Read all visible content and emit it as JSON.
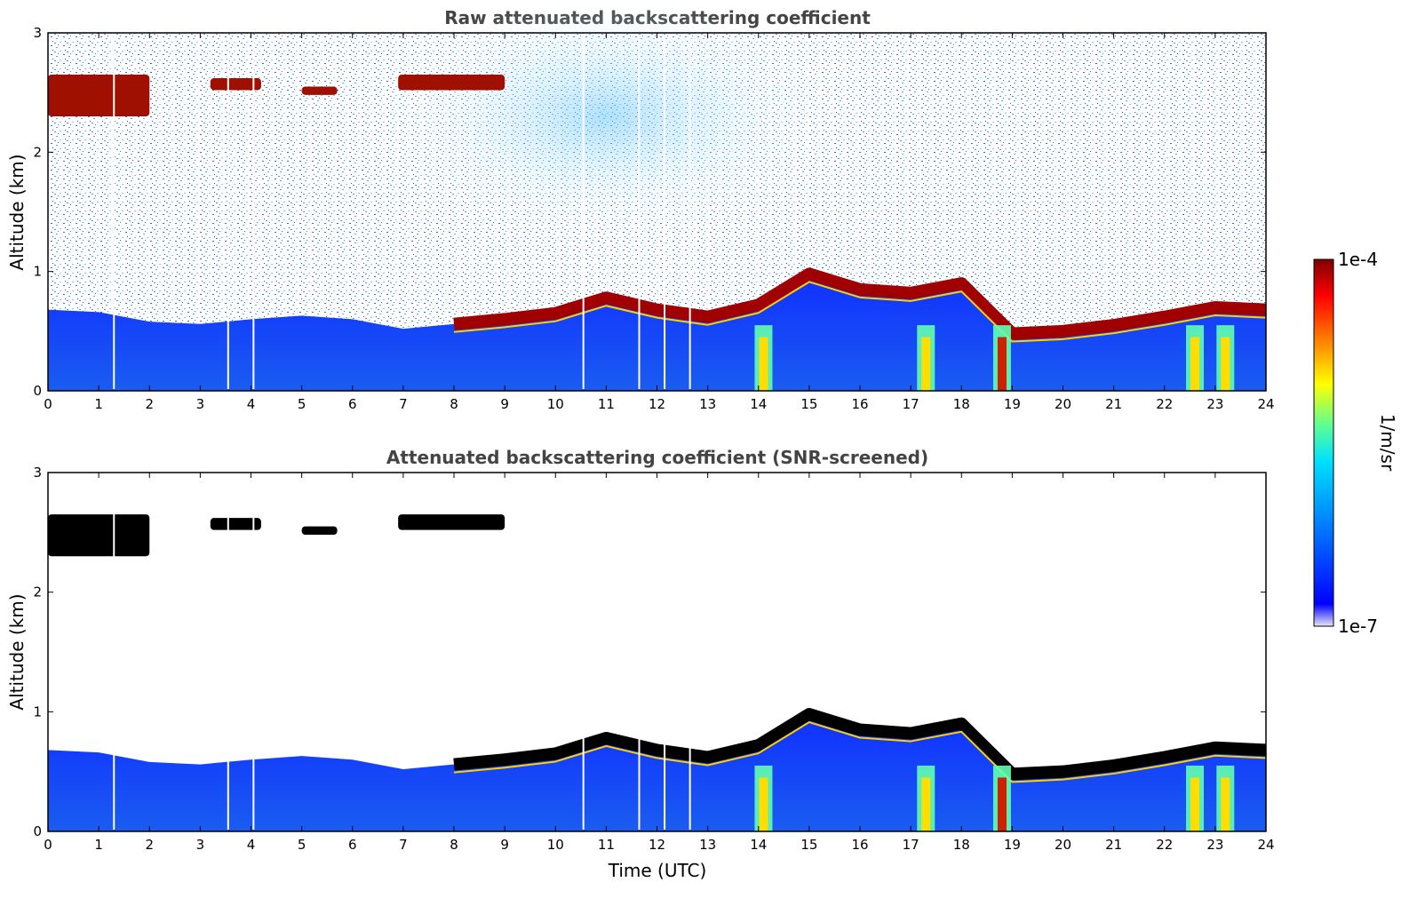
{
  "chart_data": [
    {
      "type": "heatmap",
      "title": "Raw attenuated backscattering coefficient",
      "xlabel": "",
      "ylabel": "Altitude (km)",
      "xlim": [
        0,
        24
      ],
      "ylim": [
        0,
        3
      ],
      "xticks": [
        "0",
        "1",
        "2",
        "3",
        "4",
        "5",
        "6",
        "7",
        "8",
        "9",
        "10",
        "11",
        "12",
        "13",
        "14",
        "15",
        "16",
        "17",
        "18",
        "19",
        "20",
        "21",
        "22",
        "23",
        "24"
      ],
      "yticks": [
        "0",
        "1",
        "2",
        "3"
      ],
      "boundary_layer_top_km": [
        [
          0,
          0.68
        ],
        [
          1,
          0.66
        ],
        [
          2,
          0.58
        ],
        [
          3,
          0.56
        ],
        [
          4,
          0.6
        ],
        [
          5,
          0.63
        ],
        [
          6,
          0.6
        ],
        [
          7,
          0.52
        ],
        [
          8,
          0.56
        ],
        [
          9,
          0.6
        ],
        [
          10,
          0.65
        ],
        [
          11,
          0.78
        ],
        [
          12,
          0.68
        ],
        [
          13,
          0.62
        ],
        [
          14,
          0.72
        ],
        [
          15,
          0.98
        ],
        [
          16,
          0.85
        ],
        [
          17,
          0.82
        ],
        [
          18,
          0.9
        ],
        [
          19,
          0.48
        ],
        [
          20,
          0.5
        ],
        [
          21,
          0.55
        ],
        [
          22,
          0.62
        ],
        [
          23,
          0.7
        ],
        [
          24,
          0.68
        ]
      ],
      "cloud_layers": [
        {
          "start": 0,
          "end": 2.0,
          "base_km": 2.3,
          "top_km": 2.65
        },
        {
          "start": 3.2,
          "end": 4.2,
          "base_km": 2.52,
          "top_km": 2.62
        },
        {
          "start": 5.0,
          "end": 5.7,
          "base_km": 2.48,
          "top_km": 2.55
        },
        {
          "start": 6.9,
          "end": 9.0,
          "base_km": 2.52,
          "top_km": 2.65
        }
      ]
    },
    {
      "type": "heatmap",
      "title": "Attenuated backscattering coefficient (SNR-screened)",
      "xlabel": "Time (UTC)",
      "ylabel": "Altitude (km)",
      "xlim": [
        0,
        24
      ],
      "ylim": [
        0,
        3
      ],
      "xticks": [
        "0",
        "1",
        "2",
        "3",
        "4",
        "5",
        "6",
        "7",
        "8",
        "9",
        "10",
        "11",
        "12",
        "13",
        "14",
        "15",
        "16",
        "17",
        "18",
        "19",
        "20",
        "21",
        "22",
        "23",
        "24"
      ],
      "yticks": [
        "0",
        "1",
        "2",
        "3"
      ]
    }
  ],
  "colorbar": {
    "max_label": "1e-4",
    "min_label": "1e-7",
    "unit": "1/m/sr",
    "colors": [
      "#e6e6f5",
      "#0000ff",
      "#0080ff",
      "#00ffff",
      "#80ff80",
      "#ffff00",
      "#ff8000",
      "#ff0000",
      "#800000"
    ]
  }
}
